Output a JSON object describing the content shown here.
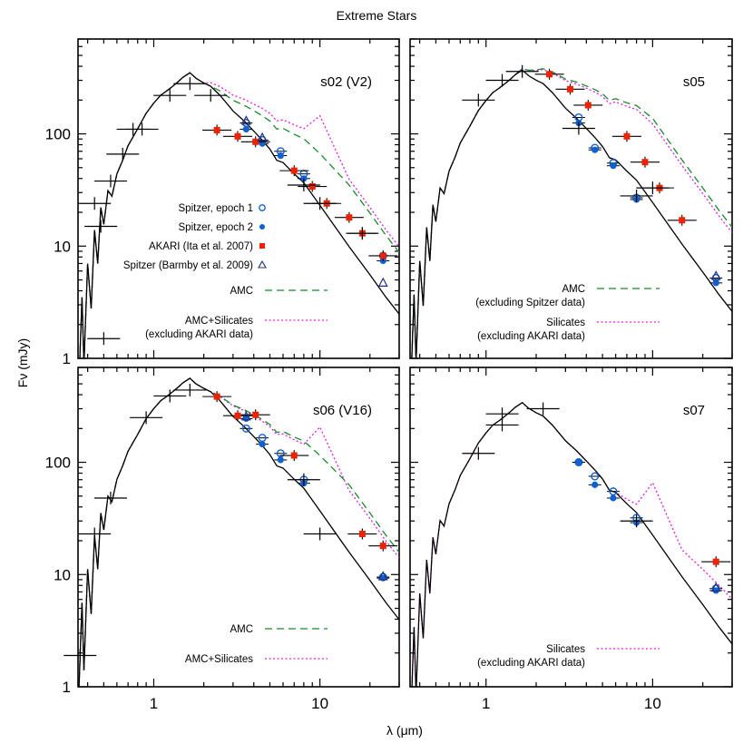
{
  "figure": {
    "title": "Extreme Stars",
    "xlabel": "λ (μm)",
    "ylabel": "Fν (mJy)",
    "xlim": [
      0.35,
      30
    ],
    "ylim": [
      1,
      700
    ],
    "x_scale": "log",
    "y_scale": "log",
    "x_ticks": [
      1,
      10
    ],
    "y_ticks": [
      1,
      10,
      100
    ],
    "colors": {
      "model": "#000000",
      "amc": "#1a8a2e",
      "silicates": "#e020e0",
      "spitzer": "#1060d0",
      "akari": "#ee2200",
      "photometry": "#000000"
    }
  },
  "chart_data": [
    {
      "type": "scatter",
      "panel_label": "s02 (V2)",
      "legend": [
        {
          "label": "Spitzer, epoch 1",
          "marker": "open-circle"
        },
        {
          "label": "Spitzer, epoch 2",
          "marker": "filled-circle"
        },
        {
          "label": "AKARI (Ita et al. 2007)",
          "marker": "filled-square"
        },
        {
          "label": "Spitzer (Barmby et al. 2009)",
          "marker": "open-triangle"
        },
        {
          "label": "AMC",
          "style": "dashed"
        },
        {
          "label": "AMC+Silicates\n(excluding AKARI data)",
          "style": "dotted"
        }
      ],
      "series": [
        {
          "name": "Spitzer, epoch 1",
          "marker": "open-circle",
          "x": [
            3.6,
            4.5,
            5.8,
            8.0,
            24.0
          ],
          "y": [
            125,
            88,
            70,
            44,
            8.2
          ]
        },
        {
          "name": "Spitzer, epoch 2",
          "marker": "filled-circle",
          "x": [
            3.6,
            4.5,
            5.8,
            8.0,
            24.0
          ],
          "y": [
            110,
            82,
            64,
            40,
            7.4
          ]
        },
        {
          "name": "AKARI (Ita et al. 2007)",
          "marker": "filled-square",
          "x": [
            2.4,
            3.2,
            4.1,
            7.0,
            9.0,
            11.0,
            15.0,
            18.0,
            24.0
          ],
          "y": [
            108,
            95,
            85,
            47,
            34,
            24,
            18,
            13,
            8.2
          ]
        },
        {
          "name": "Spitzer (Barmby et al. 2009)",
          "marker": "open-triangle",
          "x": [
            3.6,
            4.5,
            24.0
          ],
          "y": [
            130,
            92,
            4.7
          ]
        },
        {
          "name": "photometry",
          "marker": "cross",
          "x": [
            0.44,
            0.48,
            0.55,
            0.65,
            0.75,
            0.85,
            1.25,
            1.65,
            2.2,
            8.0,
            10.0,
            18.0,
            0.5
          ],
          "y": [
            24,
            15,
            38,
            66,
            110,
            110,
            220,
            280,
            220,
            35,
            24,
            13,
            1.5
          ]
        }
      ]
    },
    {
      "type": "scatter",
      "panel_label": "s05",
      "legend": [
        {
          "label": "AMC\n(excluding Spitzer data)",
          "style": "dashed"
        },
        {
          "label": "Silicates\n(excluding AKARI data)",
          "style": "dotted"
        }
      ],
      "series": [
        {
          "name": "Spitzer, epoch 1",
          "marker": "open-circle",
          "x": [
            3.6,
            4.5,
            5.8,
            8.0,
            24.0
          ],
          "y": [
            140,
            75,
            55,
            27,
            5.2
          ]
        },
        {
          "name": "Spitzer, epoch 2",
          "marker": "filled-circle",
          "x": [
            3.6,
            4.5,
            5.8,
            8.0,
            24.0
          ],
          "y": [
            125,
            72,
            52,
            26,
            4.7
          ]
        },
        {
          "name": "AKARI (Ita et al. 2007)",
          "marker": "filled-square",
          "x": [
            2.4,
            3.2,
            4.1,
            7.0,
            9.0,
            11.0,
            15.0
          ],
          "y": [
            340,
            250,
            180,
            95,
            56,
            33,
            17
          ]
        },
        {
          "name": "Spitzer (Barmby et al. 2009)",
          "marker": "open-triangle",
          "x": [
            24.0
          ],
          "y": [
            5.4
          ]
        },
        {
          "name": "photometry",
          "marker": "cross",
          "x": [
            0.9,
            1.25,
            1.65,
            3.6,
            8.0,
            10.0
          ],
          "y": [
            200,
            300,
            360,
            112,
            28,
            33
          ]
        }
      ]
    },
    {
      "type": "scatter",
      "panel_label": "s06 (V16)",
      "legend": [
        {
          "label": "AMC",
          "style": "dashed"
        },
        {
          "label": "AMC+Silicates",
          "style": "dotted"
        }
      ],
      "series": [
        {
          "name": "Spitzer, epoch 1",
          "marker": "open-circle",
          "x": [
            3.6,
            4.5,
            5.8,
            8.0,
            24.0
          ],
          "y": [
            200,
            165,
            120,
            70,
            9.5
          ]
        },
        {
          "name": "Spitzer, epoch 2",
          "marker": "filled-circle",
          "x": [
            3.6,
            4.5,
            5.8,
            8.0,
            24.0
          ],
          "y": [
            245,
            145,
            105,
            65,
            9.3
          ]
        },
        {
          "name": "AKARI (Ita et al. 2007)",
          "marker": "filled-square",
          "x": [
            2.4,
            3.2,
            4.1,
            7.0,
            18.0,
            24.0
          ],
          "y": [
            385,
            260,
            265,
            115,
            23,
            18
          ]
        },
        {
          "name": "Spitzer (Barmby et al. 2009)",
          "marker": "open-triangle",
          "x": [
            3.6,
            24.0
          ],
          "y": [
            255,
            9.6
          ]
        },
        {
          "name": "photometry",
          "marker": "cross",
          "x": [
            0.44,
            0.55,
            0.9,
            1.25,
            1.65,
            8.0,
            10.0,
            0.36
          ],
          "y": [
            23,
            48,
            250,
            390,
            440,
            70,
            23,
            1.9
          ]
        }
      ]
    },
    {
      "type": "scatter",
      "panel_label": "s07",
      "legend": [
        {
          "label": "Silicates\n(excluding AKARI data)",
          "style": "dotted"
        }
      ],
      "series": [
        {
          "name": "Spitzer, epoch 1",
          "marker": "open-circle",
          "x": [
            3.6,
            4.5,
            5.8,
            8.0,
            24.0
          ],
          "y": [
            100,
            75,
            55,
            32,
            7.5
          ]
        },
        {
          "name": "Spitzer, epoch 2",
          "marker": "filled-circle",
          "x": [
            3.6,
            4.5,
            5.8,
            8.0,
            24.0
          ],
          "y": [
            100,
            63,
            48,
            29,
            7.2
          ]
        },
        {
          "name": "AKARI (Ita et al. 2007)",
          "marker": "filled-square",
          "x": [
            24.0
          ],
          "y": [
            13
          ]
        },
        {
          "name": "Spitzer (Barmby et al. 2009)",
          "marker": "open-triangle",
          "x": [
            24.0
          ],
          "y": [
            7.6
          ]
        },
        {
          "name": "photometry",
          "marker": "cross",
          "x": [
            0.9,
            1.25,
            1.25,
            2.2,
            8.0
          ],
          "y": [
            120,
            270,
            215,
            300,
            30
          ]
        }
      ]
    }
  ]
}
